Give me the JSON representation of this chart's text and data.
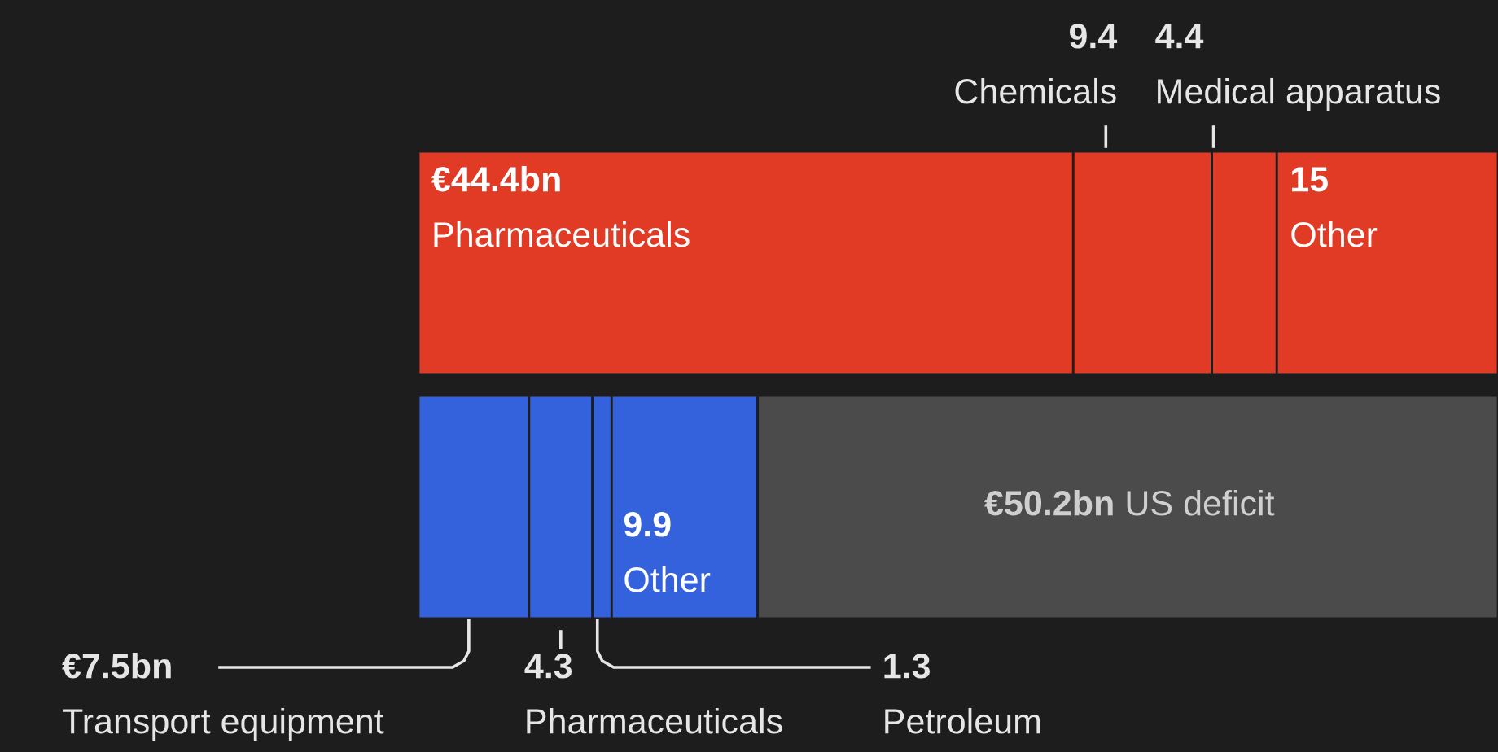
{
  "chart_data": {
    "type": "bar",
    "orientation": "horizontal",
    "stacked": true,
    "categories": [
      null,
      null
    ],
    "series": [
      {
        "colors": [
          "#e13a25",
          "#3462dc"
        ],
        "values": [
          44.4,
          7.5
        ],
        "value_labels": [
          "€44.4bn\nPharmaceuticals",
          "€7.5bn\nTransport equipment"
        ]
      },
      {
        "colors": [
          "#e13a25",
          "#3462dc"
        ],
        "values": [
          9.4,
          4.3
        ],
        "value_labels": [
          "9.4\nChemicals",
          "4.3\nPharmaceuticals"
        ]
      },
      {
        "colors": [
          "#e13a25",
          "#3462dc"
        ],
        "values": [
          4.4,
          1.3
        ],
        "value_labels": [
          "4.4\nMedical apparatus",
          "1.3\nPetroleum"
        ]
      },
      {
        "colors": [
          "#e13a25",
          "#3462dc"
        ],
        "values": [
          15,
          9.9
        ],
        "value_labels": [
          "15\nOther",
          "9.9\nOther"
        ]
      },
      {
        "color": "#4b4b4b",
        "values": [
          null,
          50.2
        ],
        "value_labels": [
          null,
          "€50.2bn\nUS deficit"
        ]
      }
    ]
  }
}
